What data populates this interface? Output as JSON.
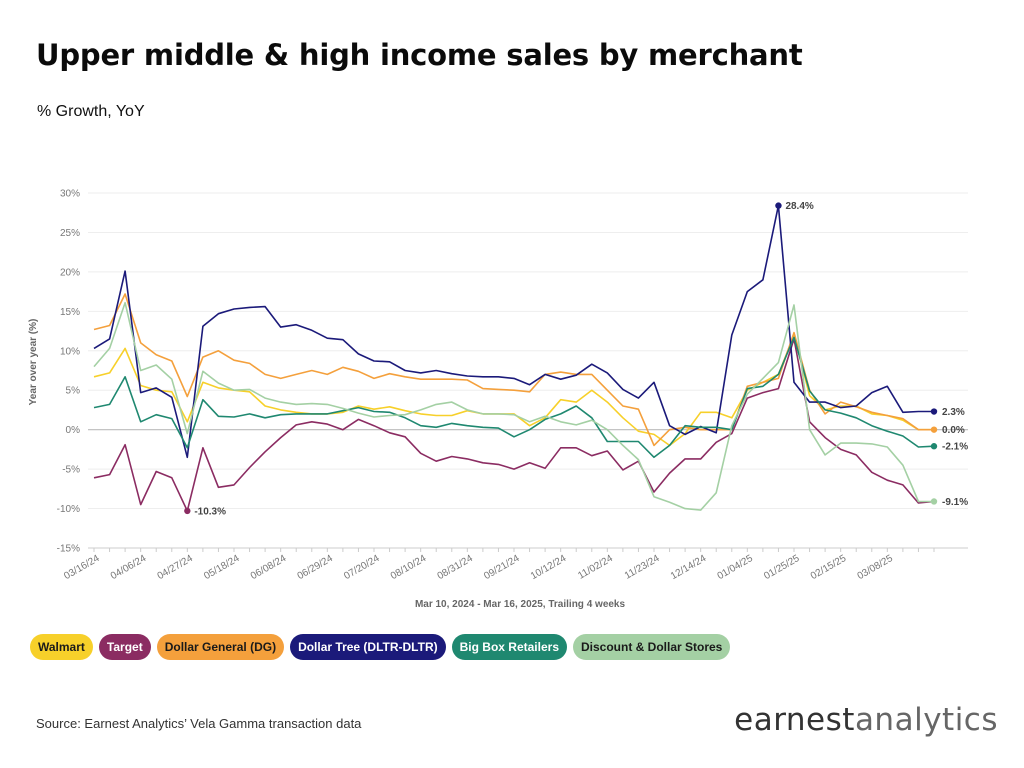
{
  "title": "Upper middle & high income sales by merchant",
  "subtitle": "% Growth, YoY",
  "source": "Source: Earnest Analytics’ Vela Gamma transaction data",
  "brand": {
    "part1": "earnest",
    "part2": "analytics"
  },
  "chart_data": {
    "type": "line",
    "xlabel": "Mar 10, 2024 - Mar 16, 2025, Trailing 4 weeks",
    "ylabel": "Year over year (%)",
    "ylim": [
      -15,
      30
    ],
    "yticks": [
      "-15%",
      "-10%",
      "-5%",
      "0%",
      "5%",
      "10%",
      "15%",
      "20%",
      "25%",
      "30%"
    ],
    "ytick_values": [
      -15,
      -10,
      -5,
      0,
      5,
      10,
      15,
      20,
      25,
      30
    ],
    "grid": true,
    "legend_position": "bottom",
    "x_tick_labels": [
      {
        "label": "03/16/24",
        "index": 0
      },
      {
        "label": "04/06/24",
        "index": 3
      },
      {
        "label": "04/27/24",
        "index": 6
      },
      {
        "label": "05/18/24",
        "index": 9
      },
      {
        "label": "06/08/24",
        "index": 12
      },
      {
        "label": "06/29/24",
        "index": 15
      },
      {
        "label": "07/20/24",
        "index": 18
      },
      {
        "label": "08/10/24",
        "index": 21
      },
      {
        "label": "08/31/24",
        "index": 24
      },
      {
        "label": "09/21/24",
        "index": 27
      },
      {
        "label": "10/12/24",
        "index": 30
      },
      {
        "label": "11/02/24",
        "index": 33
      },
      {
        "label": "11/23/24",
        "index": 36
      },
      {
        "label": "12/14/24",
        "index": 39
      },
      {
        "label": "01/04/25",
        "index": 42
      },
      {
        "label": "01/25/25",
        "index": 45
      },
      {
        "label": "02/15/25",
        "index": 48
      },
      {
        "label": "03/08/25",
        "index": 51
      }
    ],
    "series": [
      {
        "name": "Walmart",
        "color": "#f7d02a",
        "values": [
          6.7,
          7.2,
          10.3,
          5.6,
          5.0,
          4.8,
          1.0,
          6.0,
          5.3,
          5.0,
          4.8,
          3.0,
          2.5,
          2.2,
          2.0,
          2.0,
          2.2,
          3.0,
          2.6,
          2.9,
          2.4,
          2.0,
          1.8,
          1.8,
          2.4,
          2.0,
          2.0,
          2.0,
          0.5,
          1.5,
          3.8,
          3.5,
          5.0,
          3.5,
          1.5,
          -0.2,
          -0.6,
          -2.0,
          -0.5,
          2.2,
          2.2,
          1.5,
          5.0,
          6.0,
          7.0,
          12.0,
          4.3,
          2.5,
          3.0,
          3.0,
          2.0,
          1.8,
          1.2,
          0.0,
          0.0
        ]
      },
      {
        "name": "Target",
        "color": "#8b2c62",
        "values": [
          -6.1,
          -5.7,
          -1.9,
          -9.5,
          -5.3,
          -6.1,
          -10.3,
          -2.3,
          -7.3,
          -7.0,
          -4.8,
          -2.8,
          -1.0,
          0.6,
          1.0,
          0.7,
          0.0,
          1.3,
          0.5,
          -0.4,
          -0.9,
          -3.0,
          -4.0,
          -3.4,
          -3.7,
          -4.2,
          -4.4,
          -5.0,
          -4.2,
          -4.9,
          -2.3,
          -2.3,
          -3.3,
          -2.7,
          -5.1,
          -4.0,
          -7.9,
          -5.5,
          -3.7,
          -3.7,
          -1.6,
          -0.5,
          4.0,
          4.7,
          5.2,
          11.5,
          1.0,
          -1.0,
          -2.5,
          -3.2,
          -5.4,
          -6.4,
          -7.0,
          -9.3,
          -9.1
        ]
      },
      {
        "name": "Dollar General (DG)",
        "color": "#f4a03c",
        "values": [
          12.7,
          13.2,
          17.2,
          11.0,
          9.5,
          8.7,
          4.2,
          9.2,
          10.0,
          8.8,
          8.4,
          7.0,
          6.5,
          7.0,
          7.5,
          7.0,
          7.9,
          7.4,
          6.5,
          7.1,
          6.7,
          6.4,
          6.4,
          6.4,
          6.3,
          5.2,
          5.1,
          5.0,
          4.8,
          7.0,
          7.3,
          7.0,
          7.0,
          5.0,
          3.0,
          2.6,
          -2.0,
          0.0,
          0.3,
          0.0,
          0.0,
          0.0,
          5.5,
          6.0,
          6.5,
          12.3,
          5.0,
          2.0,
          3.5,
          2.9,
          2.2,
          1.8,
          1.4,
          0.0,
          0.0
        ]
      },
      {
        "name": "Dollar Tree (DLTR-DLTR)",
        "color": "#1b1a7a",
        "values": [
          10.3,
          11.5,
          20.1,
          4.7,
          5.3,
          4.1,
          -3.5,
          13.1,
          14.7,
          15.3,
          15.5,
          15.6,
          13.0,
          13.3,
          12.6,
          11.6,
          11.4,
          9.6,
          8.7,
          8.6,
          7.5,
          7.2,
          7.5,
          7.1,
          6.8,
          6.7,
          6.7,
          6.5,
          5.7,
          7.0,
          6.4,
          6.9,
          8.3,
          7.2,
          5.1,
          4.0,
          6.0,
          0.5,
          -0.6,
          0.4,
          -0.4,
          12.0,
          17.5,
          19.0,
          28.4,
          6.0,
          3.5,
          3.5,
          2.8,
          3.0,
          4.7,
          5.5,
          2.2,
          2.3,
          2.3
        ]
      },
      {
        "name": "Big Box Retailers",
        "color": "#1f8870",
        "values": [
          2.8,
          3.2,
          6.7,
          1.0,
          1.9,
          1.4,
          -2.3,
          3.8,
          1.7,
          1.6,
          2.0,
          1.5,
          1.9,
          2.0,
          2.0,
          2.0,
          2.4,
          2.8,
          2.3,
          2.2,
          1.5,
          0.5,
          0.3,
          0.8,
          0.5,
          0.3,
          0.2,
          -0.9,
          0.0,
          1.3,
          2.0,
          3.0,
          1.5,
          -1.5,
          -1.5,
          -1.5,
          -3.5,
          -2.0,
          0.5,
          0.3,
          0.3,
          0.0,
          5.2,
          5.5,
          7.0,
          11.7,
          4.9,
          2.5,
          2.1,
          1.5,
          0.5,
          -0.2,
          -0.8,
          -2.2,
          -2.1
        ]
      },
      {
        "name": "Discount & Dollar Stores",
        "color": "#a4d0a4",
        "values": [
          8.0,
          10.3,
          16.1,
          7.5,
          8.2,
          6.4,
          -0.5,
          7.4,
          5.9,
          5.0,
          5.1,
          4.0,
          3.5,
          3.2,
          3.3,
          3.2,
          2.7,
          2.1,
          1.6,
          1.8,
          1.9,
          2.5,
          3.2,
          3.5,
          2.5,
          2.0,
          2.0,
          1.9,
          1.0,
          1.7,
          1.0,
          0.6,
          1.2,
          0.0,
          -2.0,
          -3.8,
          -8.5,
          -9.2,
          -10.0,
          -10.2,
          -8.0,
          0.5,
          4.5,
          6.5,
          8.5,
          15.8,
          0.0,
          -3.2,
          -1.7,
          -1.7,
          -1.8,
          -2.2,
          -4.5,
          -9.1,
          -9.1
        ]
      }
    ],
    "annotations": [
      {
        "series": "Dollar Tree (DLTR-DLTR)",
        "index": 44,
        "label": "28.4%"
      },
      {
        "series": "Target",
        "index": 6,
        "label": "-10.3%"
      }
    ],
    "end_labels": [
      {
        "series": "Dollar Tree (DLTR-DLTR)",
        "label": "2.3%",
        "value": 2.3
      },
      {
        "series": "Dollar General (DG)",
        "label": "0.0%",
        "value": 0.0
      },
      {
        "series": "Big Box Retailers",
        "label": "-2.1%",
        "value": -2.1
      },
      {
        "series": "Discount & Dollar Stores",
        "label": "-9.1%",
        "value": -9.1
      }
    ]
  },
  "legend": [
    {
      "label": "Walmart",
      "bg": "#f7d02a",
      "fg": "#1a1a1a"
    },
    {
      "label": "Target",
      "bg": "#8b2c62",
      "fg": "#ffffff"
    },
    {
      "label": "Dollar General (DG)",
      "bg": "#f4a03c",
      "fg": "#1a1a1a"
    },
    {
      "label": "Dollar Tree (DLTR-DLTR)",
      "bg": "#1b1a7a",
      "fg": "#ffffff"
    },
    {
      "label": "Big Box Retailers",
      "bg": "#1f8870",
      "fg": "#ffffff"
    },
    {
      "label": "Discount & Dollar Stores",
      "bg": "#a4d0a4",
      "fg": "#1a1a1a"
    }
  ]
}
